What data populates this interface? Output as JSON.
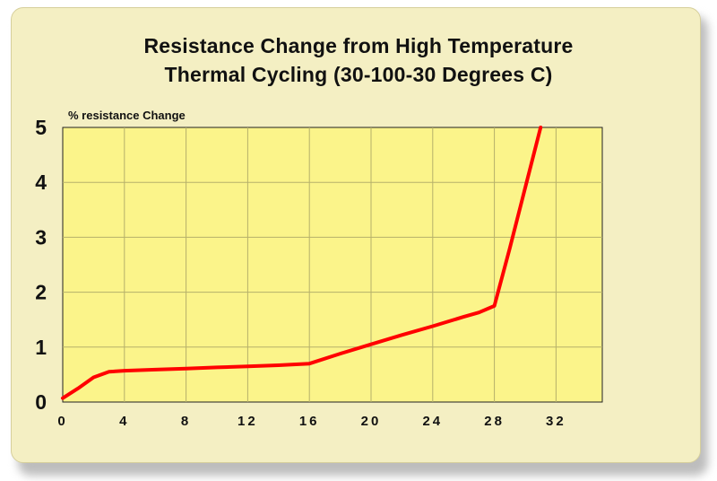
{
  "chart_data": {
    "type": "line",
    "title_line1": "Resistance Change from High Temperature",
    "title_line2": "Thermal Cycling (30-100-30 Degrees C)",
    "ylabel": "% resistance Change",
    "xlabel": "",
    "x_ticks": [
      "0",
      "4",
      "8",
      "12",
      "16",
      "20",
      "24",
      "28",
      "32"
    ],
    "y_ticks": [
      "0",
      "1",
      "2",
      "3",
      "4",
      "5"
    ],
    "xlim": [
      0,
      35
    ],
    "ylim": [
      0,
      5
    ],
    "grid": true,
    "series": [
      {
        "color": "#ff0000",
        "x": [
          0,
          1,
          2,
          3,
          4,
          6,
          8,
          10,
          12,
          14,
          16,
          18,
          20,
          22,
          24,
          26,
          27,
          28,
          29,
          30,
          31
        ],
        "y": [
          0.07,
          0.25,
          0.45,
          0.55,
          0.57,
          0.59,
          0.61,
          0.63,
          0.65,
          0.67,
          0.7,
          0.88,
          1.05,
          1.22,
          1.38,
          1.55,
          1.63,
          1.75,
          2.8,
          3.9,
          5.0
        ]
      }
    ]
  },
  "colors": {
    "card_background": "#f4efc3",
    "plot_background": "#fbf48a",
    "grid": "#b6b06a",
    "line": "#ff0000"
  }
}
